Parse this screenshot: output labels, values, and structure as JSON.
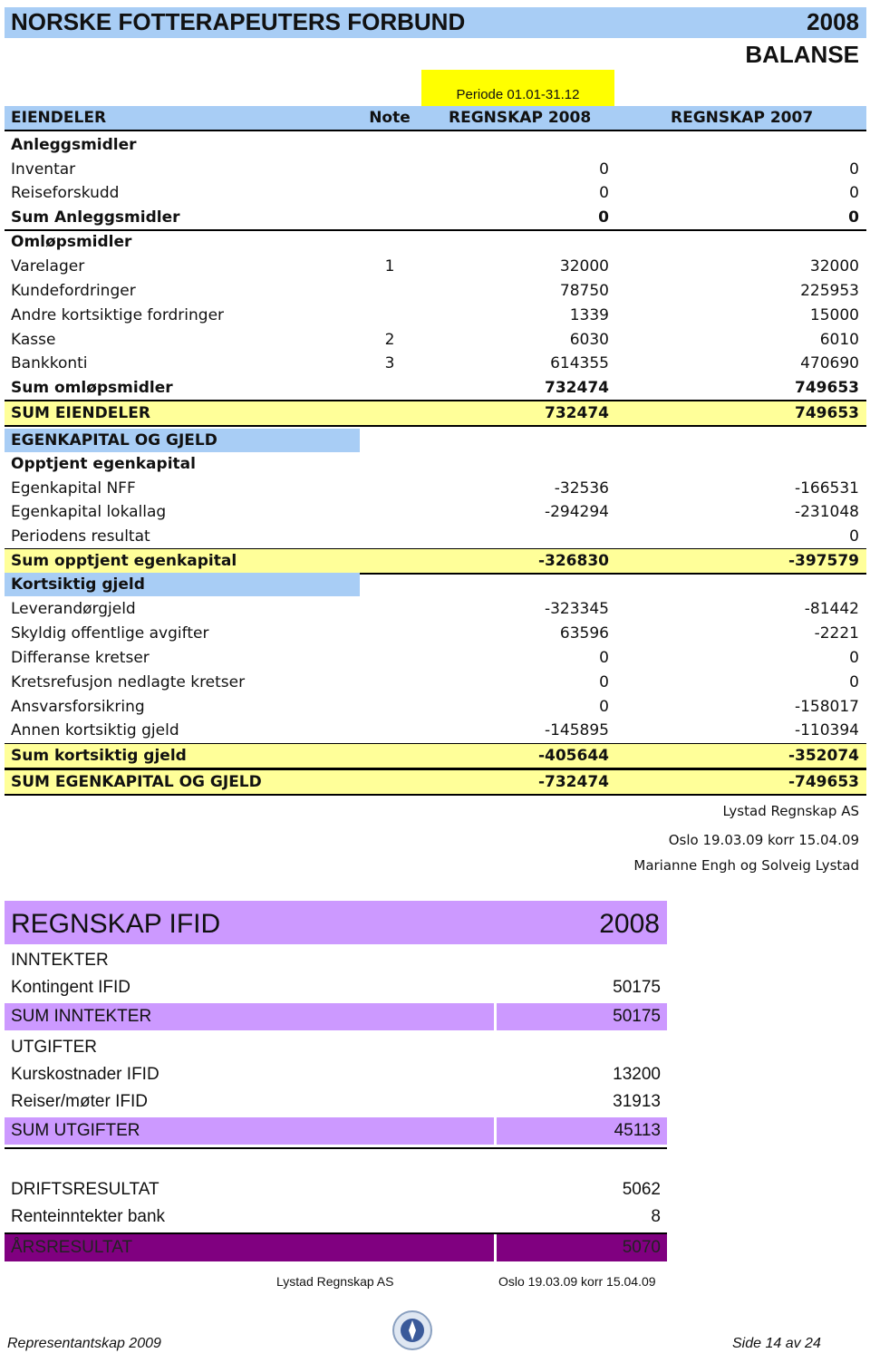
{
  "header": {
    "org": "NORSKE FOTTERAPEUTERS FORBUND",
    "year": "2008",
    "subtitle": "BALANSE",
    "period": "Periode 01.01-31.12"
  },
  "balance": {
    "columns": [
      "EIENDELER",
      "Note",
      "REGNSKAP 2008",
      "REGNSKAP 2007"
    ],
    "rows": [
      {
        "label": "Anleggsmidler"
      },
      {
        "label": "Inventar",
        "a": 0,
        "b": 0
      },
      {
        "label": "Reiseforskudd",
        "a": 0,
        "b": 0
      },
      {
        "label": "Sum Anleggsmidler",
        "a": 0,
        "b": 0
      },
      {
        "label": "Omløpsmidler"
      },
      {
        "label": "Varelager",
        "note": 1,
        "a": 32000,
        "b": 32000
      },
      {
        "label": "Kundefordringer",
        "a": 78750,
        "b": 225953
      },
      {
        "label": "Andre kortsiktige fordringer",
        "a": 1339,
        "b": 15000
      },
      {
        "label": "Kasse",
        "note": 2,
        "a": 6030,
        "b": 6010
      },
      {
        "label": "Bankkonti",
        "note": 3,
        "a": 614355,
        "b": 470690
      },
      {
        "label": "Sum omløpsmidler",
        "a": 732474,
        "b": 749653
      },
      {
        "label": "SUM EIENDELER",
        "a": 732474,
        "b": 749653
      },
      {
        "label": "EGENKAPITAL OG GJELD"
      },
      {
        "label": "Opptjent egenkapital"
      },
      {
        "label": "Egenkapital NFF",
        "a": -32536,
        "b": -166531
      },
      {
        "label": "Egenkapital lokallag",
        "a": -294294,
        "b": -231048
      },
      {
        "label": "Periodens resultat",
        "b": 0
      },
      {
        "label": "Sum opptjent egenkapital",
        "a": -326830,
        "b": -397579
      },
      {
        "label": "Kortsiktig gjeld"
      },
      {
        "label": "Leverandørgjeld",
        "a": -323345,
        "b": -81442
      },
      {
        "label": "Skyldig offentlige avgifter",
        "a": 63596,
        "b": -2221
      },
      {
        "label": "Differanse kretser",
        "a": 0,
        "b": 0
      },
      {
        "label": "Kretsrefusjon nedlagte kretser",
        "a": 0,
        "b": 0
      },
      {
        "label": "Ansvarsforsikring",
        "a": 0,
        "b": -158017
      },
      {
        "label": "Annen kortsiktig gjeld",
        "a": -145895,
        "b": -110394
      },
      {
        "label": "Sum kortsiktig gjeld",
        "a": -405644,
        "b": -352074
      },
      {
        "label": "SUM EGENKAPITAL OG GJELD",
        "a": -732474,
        "b": -749653
      }
    ]
  },
  "signature": {
    "firm": "Lystad Regnskap AS",
    "date": "Oslo 19.03.09 korr 15.04.09",
    "names": "Marianne Engh og Solveig Lystad"
  },
  "ifid": {
    "title": "REGNSKAP IFID",
    "year": "2008",
    "rows": [
      {
        "label": "INNTEKTER"
      },
      {
        "label": "Kontingent IFID",
        "value": 50175
      },
      {
        "label": "SUM INNTEKTER",
        "value": 50175
      },
      {
        "label": "UTGIFTER"
      },
      {
        "label": "Kurskostnader IFID",
        "value": 13200
      },
      {
        "label": "Reiser/møter IFID",
        "value": 31913
      },
      {
        "label": "SUM UTGIFTER",
        "value": 45113
      },
      {
        "label": "DRIFTSRESULTAT",
        "value": 5062
      },
      {
        "label": "Renteinntekter bank",
        "value": 8
      },
      {
        "label": "ÅRSRESULTAT",
        "value": 5070
      }
    ],
    "firm": "Lystad Regnskap AS",
    "date": "Oslo 19.03.09 korr 15.04.09"
  },
  "footer": {
    "left": "Representantskap 2009",
    "right": "Side 14 av 24"
  }
}
